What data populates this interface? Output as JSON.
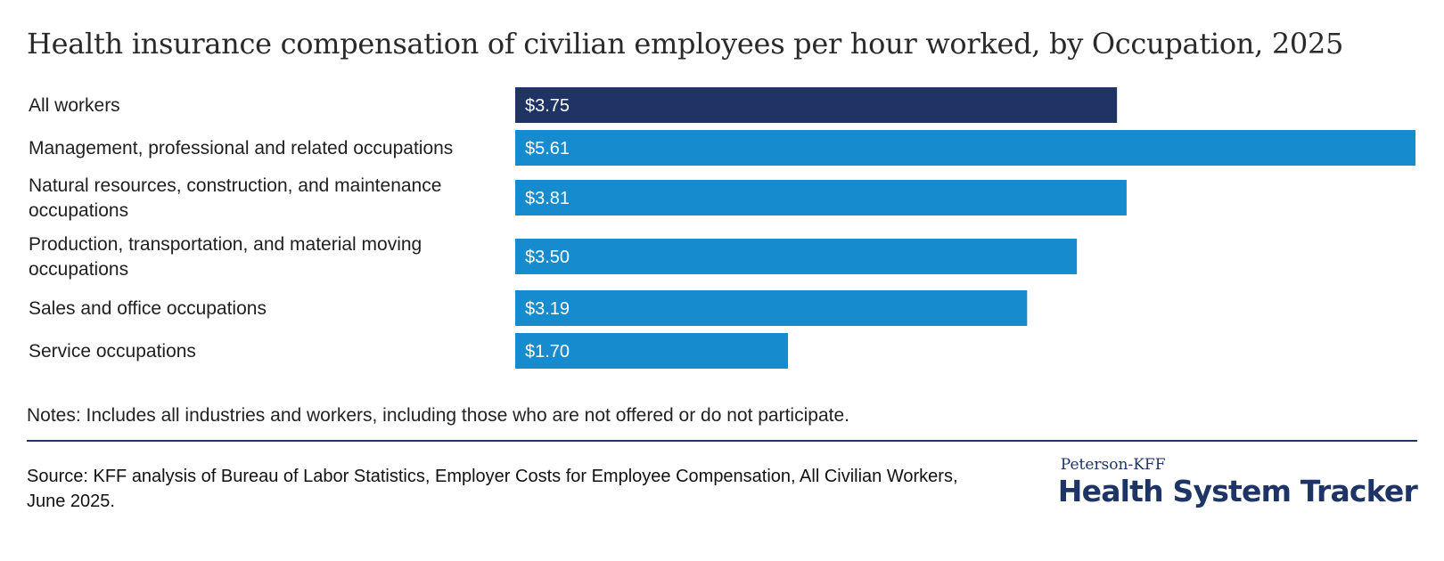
{
  "title": "Health insurance compensation of civilian employees per hour worked, by Occupation, 2025",
  "chart_data": {
    "type": "bar",
    "orientation": "horizontal",
    "title": "Health insurance compensation of civilian employees per hour worked, by Occupation, 2025",
    "xlabel": "",
    "ylabel": "",
    "xlim": [
      0,
      5.61
    ],
    "grid": false,
    "categories": [
      [
        "All workers"
      ],
      [
        "Management, professional and related occupations"
      ],
      [
        "Natural resources, construction, and maintenance",
        "occupations"
      ],
      [
        "Production, transportation, and material moving",
        "occupations"
      ],
      [
        "Sales and office occupations"
      ],
      [
        "Service occupations"
      ]
    ],
    "values": [
      3.75,
      5.61,
      3.81,
      3.5,
      3.19,
      1.7
    ],
    "value_labels": [
      "$3.75",
      "$5.61",
      "$3.81",
      "$3.50",
      "$3.19",
      "$1.70"
    ],
    "bar_colors": [
      "#1f3465",
      "#168bce",
      "#168bce",
      "#168bce",
      "#168bce",
      "#168bce"
    ]
  },
  "notes": "Notes: Includes all industries and workers, including those who are not offered or do not participate.",
  "source": "Source: KFF analysis of Bureau of Labor Statistics, Employer Costs for Employee Compensation, All Civilian Workers, June 2025.",
  "logo": {
    "top": "Peterson-KFF",
    "main": "Health System Tracker"
  },
  "colors": {
    "rule": "#1e3466",
    "brand": "#1e3466"
  }
}
